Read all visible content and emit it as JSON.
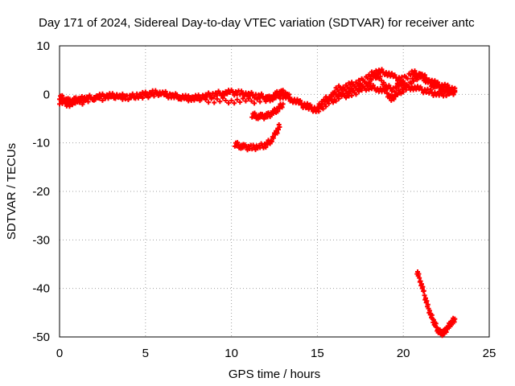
{
  "chart_data": {
    "type": "scatter",
    "title": "Day 171 of 2024, Sidereal Day-to-day VTEC variation (SDTVAR) for receiver antc",
    "xlabel": "GPS time / hours",
    "ylabel": "SDTVAR / TECUs",
    "xlim": [
      0,
      25
    ],
    "ylim": [
      -50,
      10
    ],
    "xticks": [
      0,
      5,
      10,
      15,
      20,
      25
    ],
    "yticks": [
      -50,
      -40,
      -30,
      -20,
      -10,
      0,
      10
    ],
    "grid": true,
    "marker_color": "#ff0000",
    "series": [
      {
        "name": "main-trace",
        "points": [
          [
            0.0,
            -0.5
          ],
          [
            0.3,
            -1.0
          ],
          [
            0.6,
            -1.5
          ],
          [
            0.9,
            -1.2
          ],
          [
            1.2,
            -1.0
          ],
          [
            1.5,
            -0.8
          ],
          [
            2.0,
            -0.6
          ],
          [
            2.5,
            -0.4
          ],
          [
            3.0,
            -0.3
          ],
          [
            3.5,
            -0.4
          ],
          [
            4.0,
            -0.5
          ],
          [
            4.5,
            -0.3
          ],
          [
            5.0,
            0.0
          ],
          [
            5.5,
            0.3
          ],
          [
            6.0,
            0.2
          ],
          [
            6.5,
            -0.2
          ],
          [
            7.0,
            -0.5
          ],
          [
            7.5,
            -0.8
          ],
          [
            8.0,
            -0.7
          ],
          [
            8.5,
            -0.3
          ],
          [
            9.0,
            0.0
          ],
          [
            9.5,
            0.3
          ],
          [
            10.0,
            0.4
          ],
          [
            10.5,
            0.2
          ],
          [
            11.0,
            0.0
          ],
          [
            11.5,
            -0.3
          ],
          [
            12.0,
            -0.5
          ],
          [
            12.3,
            -1.0
          ],
          [
            12.6,
            0.0
          ],
          [
            12.9,
            0.5
          ],
          [
            13.2,
            0.0
          ],
          [
            13.5,
            -1.0
          ],
          [
            14.0,
            -2.0
          ],
          [
            14.5,
            -2.8
          ],
          [
            15.0,
            -3.0
          ],
          [
            15.3,
            -1.5
          ],
          [
            15.7,
            -0.5
          ],
          [
            16.0,
            0.0
          ],
          [
            16.5,
            0.5
          ],
          [
            17.0,
            1.0
          ],
          [
            17.5,
            1.5
          ],
          [
            18.0,
            2.5
          ],
          [
            18.3,
            4.0
          ],
          [
            18.6,
            3.5
          ],
          [
            19.0,
            1.5
          ],
          [
            19.5,
            1.0
          ],
          [
            19.8,
            2.5
          ],
          [
            20.2,
            1.5
          ],
          [
            20.6,
            3.0
          ],
          [
            21.0,
            4.0
          ],
          [
            21.3,
            3.0
          ],
          [
            21.7,
            2.0
          ],
          [
            22.0,
            1.5
          ],
          [
            22.5,
            1.0
          ],
          [
            23.0,
            0.5
          ]
        ]
      },
      {
        "name": "lower-parallel-trace",
        "points": [
          [
            0.0,
            -1.5
          ],
          [
            0.5,
            -2.0
          ],
          [
            1.0,
            -1.8
          ],
          [
            2.0,
            -1.0
          ],
          [
            3.0,
            -0.5
          ],
          [
            4.0,
            -0.6
          ],
          [
            5.0,
            -0.2
          ],
          [
            6.0,
            0.0
          ],
          [
            7.0,
            -0.7
          ],
          [
            8.0,
            -1.0
          ],
          [
            9.0,
            -1.2
          ],
          [
            10.0,
            -1.3
          ],
          [
            11.0,
            -1.4
          ],
          [
            12.0,
            -1.2
          ],
          [
            12.5,
            -0.5
          ],
          [
            13.0,
            -0.3
          ],
          [
            13.5,
            -1.0
          ],
          [
            14.0,
            -1.8
          ],
          [
            14.5,
            -2.5
          ],
          [
            15.0,
            -3.5
          ],
          [
            15.5,
            -2.0
          ],
          [
            16.0,
            -1.0
          ],
          [
            16.5,
            -0.3
          ],
          [
            17.0,
            0.0
          ],
          [
            17.5,
            1.0
          ],
          [
            18.0,
            1.5
          ],
          [
            18.5,
            1.2
          ],
          [
            19.0,
            0.5
          ],
          [
            19.3,
            -1.0
          ],
          [
            19.6,
            0.0
          ],
          [
            20.0,
            1.0
          ],
          [
            20.5,
            1.5
          ],
          [
            21.0,
            1.0
          ],
          [
            21.5,
            0.5
          ],
          [
            22.0,
            0.0
          ],
          [
            22.5,
            0.2
          ],
          [
            23.0,
            0.5
          ]
        ]
      },
      {
        "name": "upper-secondary-trace",
        "points": [
          [
            16.0,
            1.0
          ],
          [
            16.5,
            1.5
          ],
          [
            17.0,
            2.0
          ],
          [
            17.5,
            2.5
          ],
          [
            18.0,
            3.8
          ],
          [
            18.5,
            4.8
          ],
          [
            19.0,
            4.5
          ],
          [
            19.5,
            3.5
          ],
          [
            20.0,
            3.0
          ],
          [
            20.5,
            4.5
          ],
          [
            21.0,
            4.0
          ],
          [
            21.5,
            3.0
          ],
          [
            22.0,
            2.0
          ],
          [
            22.5,
            1.5
          ],
          [
            23.0,
            1.0
          ]
        ]
      },
      {
        "name": "short-segment-near-minus-4",
        "points": [
          [
            11.2,
            -4.2
          ],
          [
            11.5,
            -4.5
          ],
          [
            11.8,
            -4.6
          ],
          [
            12.1,
            -4.4
          ],
          [
            12.4,
            -3.8
          ],
          [
            12.7,
            -3.0
          ],
          [
            13.0,
            -2.0
          ]
        ]
      },
      {
        "name": "segment-near-minus-10",
        "points": [
          [
            10.2,
            -10.2
          ],
          [
            10.5,
            -10.6
          ],
          [
            10.8,
            -10.9
          ],
          [
            11.2,
            -11.0
          ],
          [
            11.6,
            -10.8
          ],
          [
            12.0,
            -10.4
          ],
          [
            12.3,
            -9.5
          ],
          [
            12.6,
            -8.0
          ],
          [
            12.8,
            -6.5
          ]
        ]
      },
      {
        "name": "deep-drop-segment",
        "points": [
          [
            20.8,
            -36.5
          ],
          [
            21.0,
            -38.5
          ],
          [
            21.2,
            -41.0
          ],
          [
            21.4,
            -43.5
          ],
          [
            21.6,
            -45.5
          ],
          [
            21.8,
            -47.0
          ],
          [
            22.0,
            -48.5
          ],
          [
            22.2,
            -49.3
          ],
          [
            22.4,
            -49.0
          ],
          [
            22.6,
            -48.0
          ],
          [
            22.8,
            -47.0
          ],
          [
            23.0,
            -46.3
          ]
        ]
      }
    ]
  }
}
